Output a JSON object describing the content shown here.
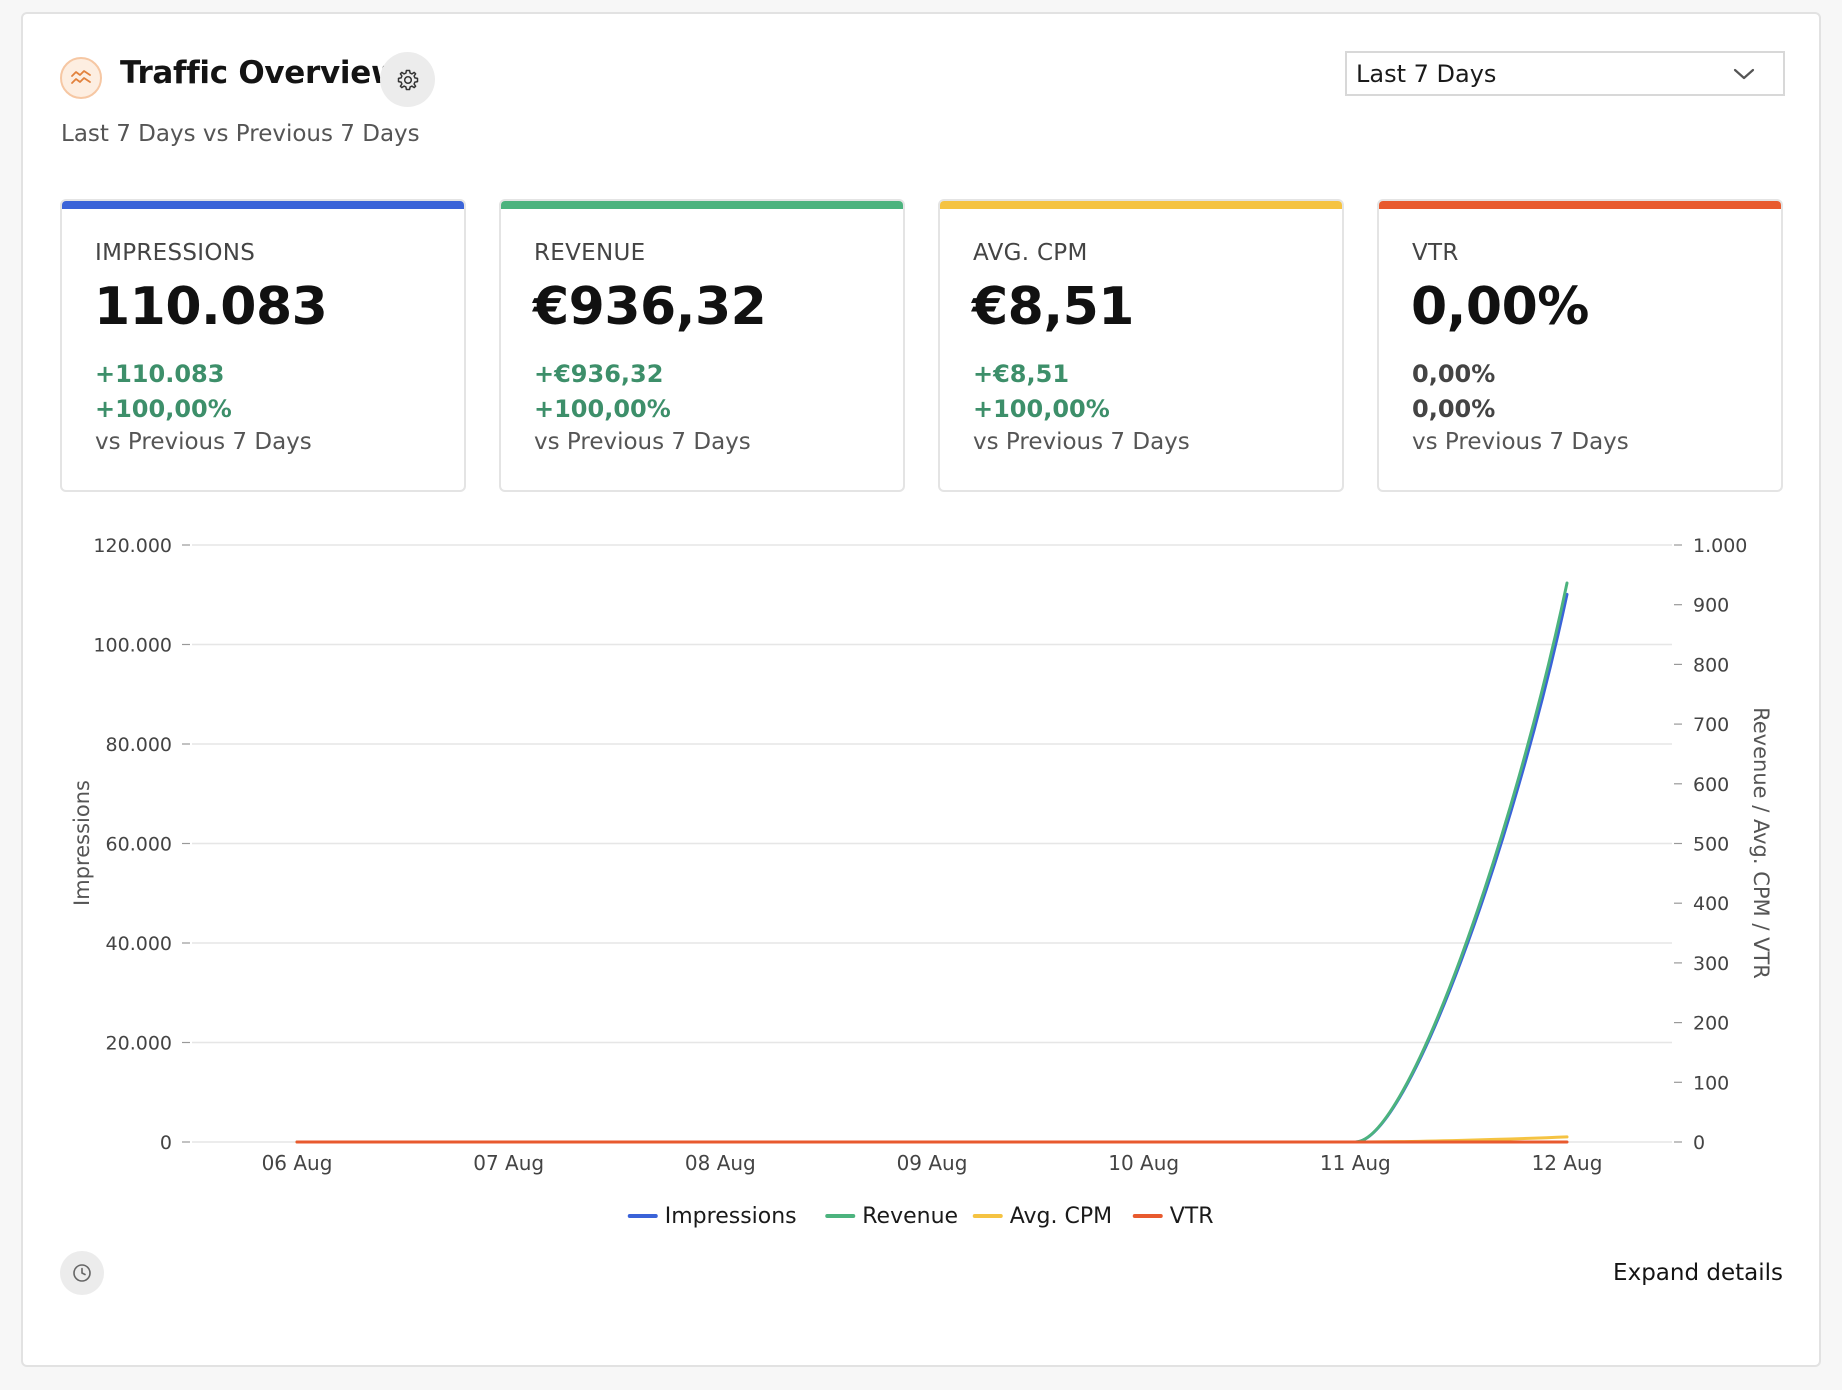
{
  "header": {
    "title": "Traffic Overview",
    "subtitle": "Last 7 Days vs Previous 7 Days",
    "title_icon": "trend-chart-icon",
    "settings_icon": "gear-icon"
  },
  "range_select": {
    "value": "Last 7 Days",
    "icon": "chevron-down-icon"
  },
  "kpis": [
    {
      "label": "IMPRESSIONS",
      "value": "110.083",
      "delta_abs": "+110.083",
      "delta_pct": "+100,00%",
      "comparison": "vs Previous 7 Days",
      "color": "#3a63d8",
      "delta_color": "#3d8f6a"
    },
    {
      "label": "REVENUE",
      "value": "€936,32",
      "delta_abs": "+€936,32",
      "delta_pct": "+100,00%",
      "comparison": "vs Previous 7 Days",
      "color": "#4cb37e",
      "delta_color": "#3d8f6a"
    },
    {
      "label": "AVG. CPM",
      "value": "€8,51",
      "delta_abs": "+€8,51",
      "delta_pct": "+100,00%",
      "comparison": "vs Previous 7 Days",
      "color": "#f5c342",
      "delta_color": "#3d8f6a"
    },
    {
      "label": "VTR",
      "value": "0,00%",
      "delta_abs": "0,00%",
      "delta_pct": "0,00%",
      "comparison": "vs Previous 7 Days",
      "color": "#e85a2e",
      "delta_color": "#444444"
    }
  ],
  "chart_data": {
    "type": "line",
    "categories": [
      "06 Aug",
      "07 Aug",
      "08 Aug",
      "09 Aug",
      "10 Aug",
      "11 Aug",
      "12 Aug"
    ],
    "y_left": {
      "label": "Impressions",
      "lim": [
        0,
        120000
      ],
      "ticks": [
        0,
        20000,
        40000,
        60000,
        80000,
        100000,
        120000
      ],
      "tick_labels": [
        "0",
        "20.000",
        "40.000",
        "60.000",
        "80.000",
        "100.000",
        "120.000"
      ]
    },
    "y_right": {
      "label": "Revenue / Avg. CPM / VTR",
      "lim": [
        0,
        1000
      ],
      "ticks": [
        0,
        100,
        200,
        300,
        400,
        500,
        600,
        700,
        800,
        900,
        1000
      ],
      "tick_labels": [
        "0",
        "100",
        "200",
        "300",
        "400",
        "500",
        "600",
        "700",
        "800",
        "900",
        "1.000"
      ]
    },
    "series": [
      {
        "name": "Impressions",
        "axis": "left",
        "color": "#3a63d8",
        "values": [
          0,
          0,
          0,
          0,
          0,
          0,
          110083
        ]
      },
      {
        "name": "Revenue",
        "axis": "right",
        "color": "#4cb37e",
        "values": [
          0,
          0,
          0,
          0,
          0,
          0,
          936.32
        ]
      },
      {
        "name": "Avg. CPM",
        "axis": "right",
        "color": "#f5c342",
        "values": [
          0,
          0,
          0,
          0,
          0,
          0,
          8.51
        ]
      },
      {
        "name": "VTR",
        "axis": "right",
        "color": "#e85a2e",
        "values": [
          0,
          0,
          0,
          0,
          0,
          0,
          0
        ]
      }
    ],
    "grid": true,
    "legend": "bottom-center"
  },
  "footer": {
    "history_icon": "clock-icon",
    "expand_label": "Expand details"
  }
}
